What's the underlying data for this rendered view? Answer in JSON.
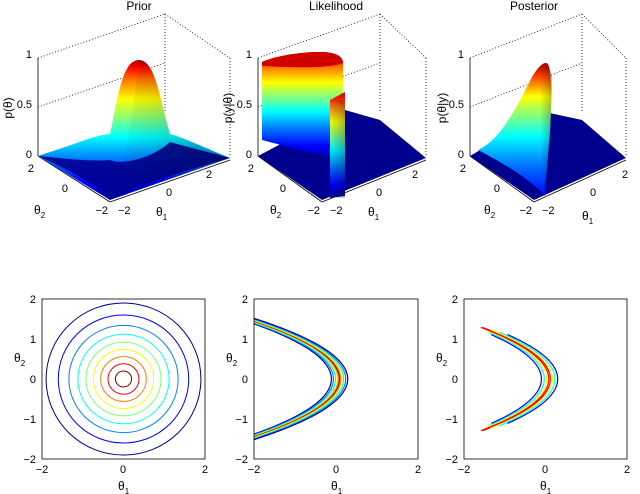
{
  "colors": {
    "jet": [
      "#00008f",
      "#0000ff",
      "#0080ff",
      "#00ffff",
      "#80ff80",
      "#ffff00",
      "#ff8000",
      "#ff0000",
      "#800000"
    ],
    "axis": "#000000",
    "background": "#ffffff"
  },
  "chart_data": [
    {
      "type": "surface",
      "title": "Prior",
      "zlabel": "p(θ)",
      "xlabel": {
        "base": "θ",
        "sub": "1"
      },
      "ylabel": {
        "base": "θ",
        "sub": "2"
      },
      "zticks": [
        "0",
        "0.5",
        "1"
      ],
      "xticks": [
        "−2",
        "0",
        "2"
      ],
      "yticks": [
        "−2",
        "0",
        "2"
      ],
      "xlim": [
        -2,
        2
      ],
      "ylim": [
        -2,
        2
      ],
      "zlim": [
        0,
        1
      ],
      "peak": 0.93
    },
    {
      "type": "surface",
      "title": "Likelihood",
      "zlabel": "p(y|θ)",
      "xlabel": {
        "base": "θ",
        "sub": "1"
      },
      "ylabel": {
        "base": "θ",
        "sub": "2"
      },
      "zticks": [
        "0",
        "0.5",
        "1"
      ],
      "xticks": [
        "−2",
        "0",
        "2"
      ],
      "yticks": [
        "−2",
        "0",
        "2"
      ],
      "xlim": [
        -2,
        2
      ],
      "ylim": [
        -2,
        2
      ],
      "zlim": [
        0,
        1
      ],
      "peak": 0.97
    },
    {
      "type": "surface",
      "title": "Posterior",
      "zlabel": "p(θ|y)",
      "xlabel": {
        "base": "θ",
        "sub": "1"
      },
      "ylabel": {
        "base": "θ",
        "sub": "2"
      },
      "zticks": [
        "0",
        "0.5",
        "1"
      ],
      "xticks": [
        "−2",
        "0",
        "2"
      ],
      "yticks": [
        "−2",
        "0",
        "2"
      ],
      "xlim": [
        -2,
        2
      ],
      "ylim": [
        -2,
        2
      ],
      "zlim": [
        0,
        1
      ],
      "peak": 0.92
    },
    {
      "type": "contour",
      "xlabel": {
        "base": "θ",
        "sub": "1"
      },
      "ylabel": {
        "base": "θ",
        "sub": "2"
      },
      "xticks": [
        "−2",
        "0",
        "2"
      ],
      "yticks": [
        "−2",
        "−1",
        "0",
        "1",
        "2"
      ],
      "xlim": [
        -2,
        2
      ],
      "ylim": [
        -2,
        2
      ],
      "radii": [
        0.2,
        0.38,
        0.56,
        0.74,
        0.92,
        1.12,
        1.34,
        1.6,
        1.9
      ]
    },
    {
      "type": "contour",
      "xlabel": {
        "base": "θ",
        "sub": "1"
      },
      "ylabel": {
        "base": "θ",
        "sub": "2"
      },
      "xticks": [
        "−2",
        "0",
        "2"
      ],
      "yticks": [
        "−2",
        "−1",
        "0",
        "1",
        "2"
      ],
      "xlim": [
        -2,
        2
      ],
      "ylim": [
        -2,
        2
      ],
      "vertex_offsets": [
        -0.2,
        -0.15,
        -0.1,
        -0.06,
        -0.03,
        0.0,
        0.03,
        0.06,
        0.1,
        0.15,
        0.2
      ]
    },
    {
      "type": "contour",
      "xlabel": {
        "base": "θ",
        "sub": "1"
      },
      "ylabel": {
        "base": "θ",
        "sub": "2"
      },
      "xticks": [
        "−2",
        "0",
        "2"
      ],
      "yticks": [
        "−2",
        "−1",
        "0",
        "1",
        "2"
      ],
      "xlim": [
        -2,
        2
      ],
      "ylim": [
        -2,
        2
      ],
      "vertex_offsets": [
        -0.2,
        -0.13,
        -0.07,
        -0.02,
        0.02,
        0.07,
        0.13,
        0.2
      ]
    }
  ]
}
